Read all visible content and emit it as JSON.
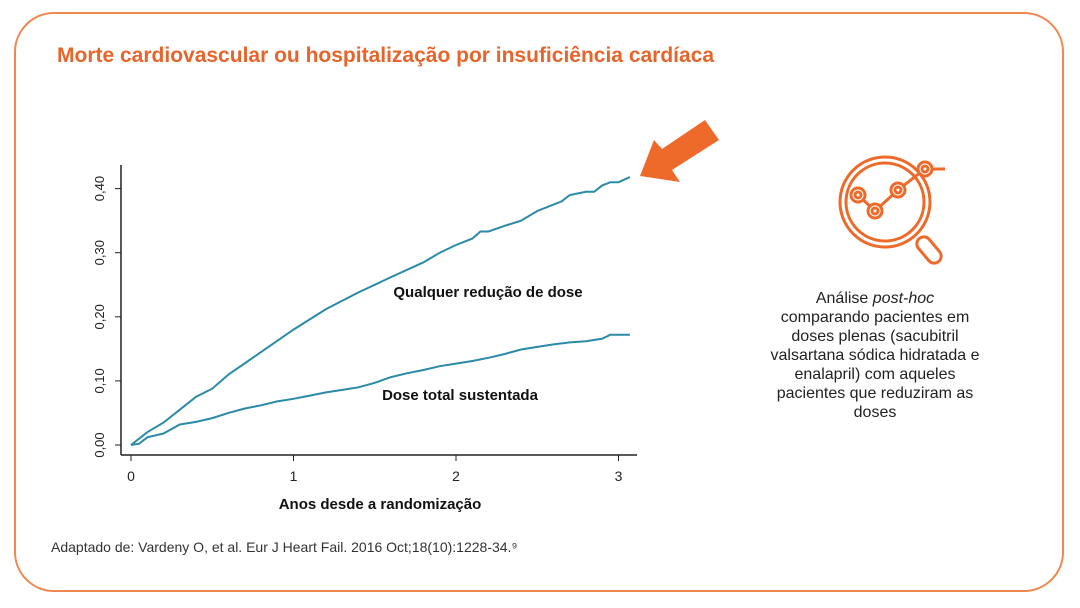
{
  "title": "Morte cardiovascular ou hospitalização por insuficiência cardíaca",
  "side_note": {
    "prefix": "Análise ",
    "italic": "post-hoc",
    "rest": "comparando pacientes em doses plenas (sacubitril valsartana sódica hidratada e enalapril) com aqueles pacientes que reduziram as doses"
  },
  "source": "Adaptado de: Vardeny O, et al. Eur J Heart Fail. 2016 Oct;18(10):1228-34.⁹",
  "colors": {
    "accent": "#e8642a",
    "line": "#2a8aa8",
    "border": "#f0874e"
  },
  "icons": [
    "arrow-icon",
    "magnifier-chart-icon"
  ],
  "chart_data": {
    "type": "line",
    "title": "",
    "xlabel": "Anos desde a randomização",
    "ylabel": "",
    "xlim": [
      0,
      3.1
    ],
    "ylim": [
      0,
      0.43
    ],
    "x_ticks": [
      0,
      1,
      2,
      3
    ],
    "x_tick_labels": [
      "0",
      "1",
      "2",
      "3"
    ],
    "y_ticks": [
      0,
      0.1,
      0.2,
      0.3,
      0.4
    ],
    "y_tick_labels": [
      "0,00",
      "0,10",
      "0,20",
      "0,30",
      "0,40"
    ],
    "grid": false,
    "series": [
      {
        "name": "Qualquer redução de dose",
        "x": [
          0,
          0.1,
          0.2,
          0.3,
          0.4,
          0.5,
          0.6,
          0.8,
          1.0,
          1.2,
          1.4,
          1.6,
          1.8,
          1.9,
          2.0,
          2.1,
          2.15,
          2.2,
          2.3,
          2.4,
          2.5,
          2.6,
          2.65,
          2.7,
          2.8,
          2.85,
          2.9,
          2.95,
          3.0,
          3.07
        ],
        "y": [
          0,
          0.02,
          0.035,
          0.055,
          0.075,
          0.088,
          0.11,
          0.145,
          0.18,
          0.212,
          0.238,
          0.262,
          0.285,
          0.3,
          0.312,
          0.322,
          0.333,
          0.333,
          0.342,
          0.35,
          0.365,
          0.375,
          0.38,
          0.39,
          0.395,
          0.395,
          0.405,
          0.41,
          0.41,
          0.418
        ]
      },
      {
        "name": "Dose total sustentada",
        "x": [
          0,
          0.05,
          0.1,
          0.2,
          0.25,
          0.3,
          0.4,
          0.5,
          0.6,
          0.7,
          0.8,
          0.9,
          1.0,
          1.1,
          1.2,
          1.3,
          1.4,
          1.5,
          1.6,
          1.7,
          1.8,
          1.9,
          2.0,
          2.1,
          2.2,
          2.3,
          2.4,
          2.5,
          2.6,
          2.7,
          2.8,
          2.9,
          2.95,
          3.0,
          3.07
        ],
        "y": [
          0,
          0.002,
          0.012,
          0.018,
          0.025,
          0.032,
          0.036,
          0.042,
          0.05,
          0.057,
          0.062,
          0.068,
          0.072,
          0.077,
          0.082,
          0.086,
          0.09,
          0.097,
          0.106,
          0.112,
          0.117,
          0.123,
          0.127,
          0.131,
          0.136,
          0.142,
          0.149,
          0.153,
          0.157,
          0.16,
          0.162,
          0.166,
          0.172,
          0.172,
          0.172
        ]
      }
    ]
  }
}
